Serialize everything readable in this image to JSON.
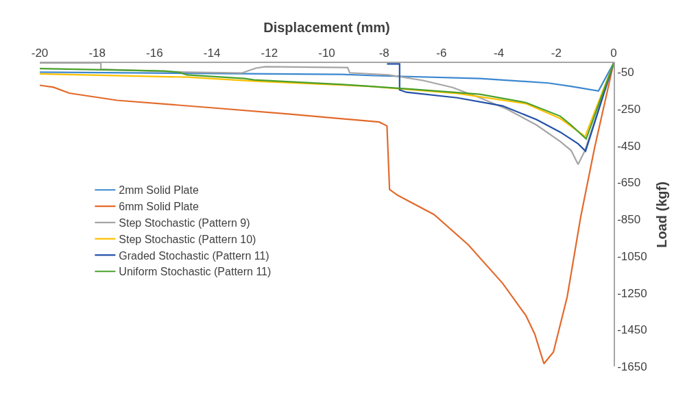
{
  "chart_data": {
    "type": "line",
    "xlabel": "Displacement (mm)",
    "ylabel": "Load (kgf)",
    "xlim": [
      -20,
      0
    ],
    "xticks": [
      -20,
      -18,
      -16,
      -14,
      -12,
      -10,
      -8,
      -6,
      -4,
      -2,
      0
    ],
    "ylim": [
      -1650,
      0
    ],
    "yticks": [
      -50,
      -250,
      -450,
      -650,
      -850,
      -1050,
      -1250,
      -1450,
      -1650
    ],
    "legend": "left",
    "marker": "none",
    "line_style": "solid",
    "series": [
      {
        "name": "2mm Solid Plate",
        "color": "#3b87cf",
        "x": [
          -20,
          -9.44,
          -8.48,
          -4.66,
          -2.27,
          -1.48,
          -0.53,
          0
        ],
        "values": [
          -50,
          -62,
          -68,
          -84,
          -109,
          -127,
          -152,
          0
        ]
      },
      {
        "name": "6mm Solid Plate",
        "color": "#e3692a",
        "x": [
          -20,
          -19.52,
          -18.97,
          -17.3,
          -14.03,
          -11.28,
          -8.17,
          -7.9,
          -7.81,
          -7.53,
          -6.26,
          -5.07,
          -3.87,
          -3.06,
          -2.75,
          -2.43,
          -2.1,
          -1.62,
          -1.15,
          -0.67,
          0
        ],
        "values": [
          -121,
          -132,
          -164,
          -203,
          -243,
          -278,
          -321,
          -342,
          -688,
          -719,
          -824,
          -988,
          -1198,
          -1373,
          -1474,
          -1635,
          -1572,
          -1272,
          -838,
          -465,
          0
        ]
      },
      {
        "name": "Step Stochastic (Pattern 9)",
        "color": "#a5a5a5",
        "x": [
          -20,
          -17.87,
          -17.87,
          -14.86,
          -12.95,
          -12.47,
          -12.14,
          -9.27,
          -9.2,
          -7.84,
          -6.64,
          -5.61,
          -4.66,
          -3.7,
          -2.68,
          -1.86,
          -1.48,
          -1.24,
          -1.0,
          0
        ],
        "values": [
          0,
          0,
          -34,
          -50,
          -54,
          -28,
          -20,
          -25,
          -53,
          -65,
          -95,
          -133,
          -189,
          -252,
          -338,
          -427,
          -476,
          -551,
          -476,
          0
        ]
      },
      {
        "name": "Step Stochastic (Pattern 10)",
        "color": "#ffc000",
        "x": [
          -20,
          -14.86,
          -12.47,
          -8.48,
          -7.45,
          -5.45,
          -3.06,
          -1.86,
          -1.08,
          -1.0,
          0
        ],
        "values": [
          -59,
          -77,
          -99,
          -127,
          -140,
          -165,
          -221,
          -302,
          -390,
          -402,
          0
        ]
      },
      {
        "name": "Graded Stochastic (Pattern 11)",
        "color": "#2250a8",
        "x": [
          -7.9,
          -7.46,
          -7.46,
          -7.22,
          -5.45,
          -3.87,
          -2.68,
          -1.86,
          -1.24,
          -0.98,
          0
        ],
        "values": [
          -5,
          -5,
          -146,
          -159,
          -189,
          -233,
          -308,
          -376,
          -439,
          -479,
          0
        ]
      },
      {
        "name": "Uniform Stochastic (Pattern 11)",
        "color": "#4aa02c",
        "x": [
          -20,
          -15.65,
          -15.17,
          -14.86,
          -12.86,
          -12.54,
          -9.44,
          -7.05,
          -4.66,
          -3.06,
          -1.86,
          -1.48,
          -0.96,
          0
        ],
        "values": [
          -30,
          -43,
          -50,
          -65,
          -84,
          -92,
          -117,
          -142,
          -170,
          -215,
          -289,
          -338,
          -413,
          0
        ]
      }
    ]
  }
}
